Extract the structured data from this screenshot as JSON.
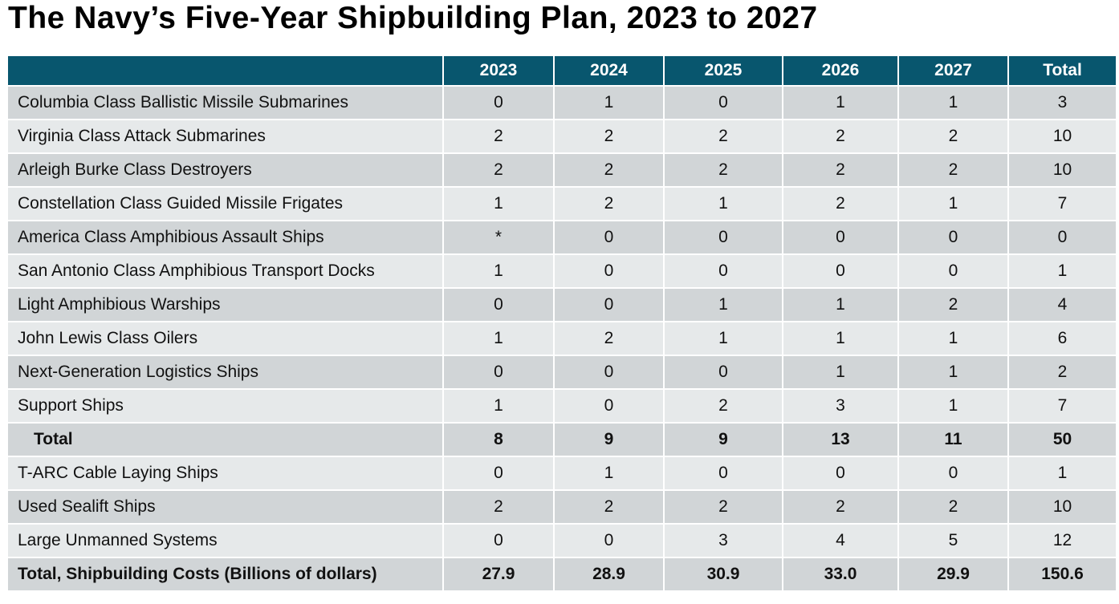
{
  "title": "The Navy’s Five-Year Shipbuilding Plan, 2023 to 2027",
  "table": {
    "header": [
      "",
      "2023",
      "2024",
      "2025",
      "2026",
      "2027",
      "Total"
    ],
    "rows": [
      {
        "label": "Columbia Class Ballistic Missile Submarines",
        "values": [
          "0",
          "1",
          "0",
          "1",
          "1",
          "3"
        ]
      },
      {
        "label": "Virginia Class Attack Submarines",
        "values": [
          "2",
          "2",
          "2",
          "2",
          "2",
          "10"
        ]
      },
      {
        "label": "Arleigh Burke Class Destroyers",
        "values": [
          "2",
          "2",
          "2",
          "2",
          "2",
          "10"
        ]
      },
      {
        "label": "Constellation Class Guided Missile Frigates",
        "values": [
          "1",
          "2",
          "1",
          "2",
          "1",
          "7"
        ]
      },
      {
        "label": "America Class Amphibious Assault Ships",
        "values": [
          "*",
          "0",
          "0",
          "0",
          "0",
          "0"
        ]
      },
      {
        "label": "San Antonio Class Amphibious Transport Docks",
        "values": [
          "1",
          "0",
          "0",
          "0",
          "0",
          "1"
        ]
      },
      {
        "label": "Light Amphibious Warships",
        "values": [
          "0",
          "0",
          "1",
          "1",
          "2",
          "4"
        ]
      },
      {
        "label": "John Lewis Class Oilers",
        "values": [
          "1",
          "2",
          "1",
          "1",
          "1",
          "6"
        ]
      },
      {
        "label": "Next-Generation Logistics Ships",
        "values": [
          "0",
          "0",
          "0",
          "1",
          "1",
          "2"
        ]
      },
      {
        "label": "Support Ships",
        "values": [
          "1",
          "0",
          "2",
          "3",
          "1",
          "7"
        ]
      },
      {
        "label": "Total",
        "values": [
          "8",
          "9",
          "9",
          "13",
          "11",
          "50"
        ]
      },
      {
        "label": "T-ARC Cable Laying Ships",
        "values": [
          "0",
          "1",
          "0",
          "0",
          "0",
          "1"
        ]
      },
      {
        "label": "Used Sealift Ships",
        "values": [
          "2",
          "2",
          "2",
          "2",
          "2",
          "10"
        ]
      },
      {
        "label": "Large Unmanned Systems",
        "values": [
          "0",
          "0",
          "3",
          "4",
          "5",
          "12"
        ]
      },
      {
        "label": "Total, Shipbuilding Costs (Billions of dollars)",
        "values": [
          "27.9",
          "28.9",
          "30.9",
          "33.0",
          "29.9",
          "150.6"
        ]
      }
    ]
  }
}
